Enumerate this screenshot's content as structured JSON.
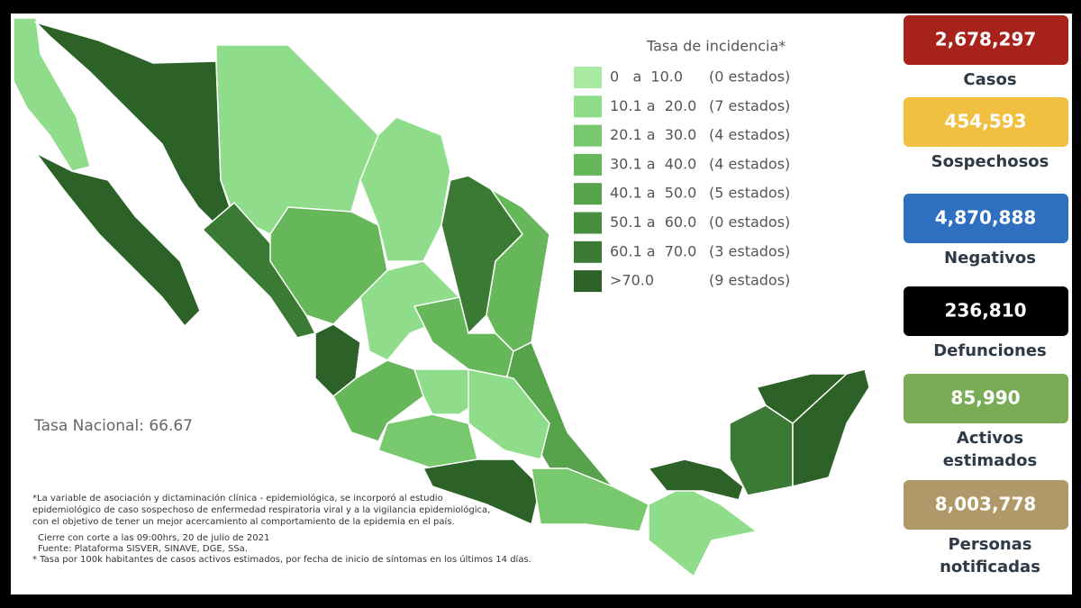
{
  "legend": {
    "title": "Tasa de incidencia*",
    "items": [
      {
        "range": "0   a  10.0",
        "count": "(0 estados)",
        "color": "#a9eaa2"
      },
      {
        "range": "10.1 a  20.0",
        "count": "(7 estados)",
        "color": "#8fdc8a"
      },
      {
        "range": "20.1 a  30.0",
        "count": "(4 estados)",
        "color": "#78c86d"
      },
      {
        "range": "30.1 a  40.0",
        "count": "(4 estados)",
        "color": "#66b65a"
      },
      {
        "range": "40.1 a  50.0",
        "count": "(5 estados)",
        "color": "#56a34c"
      },
      {
        "range": "50.1 a  60.0",
        "count": "(0 estados)",
        "color": "#478f3f"
      },
      {
        "range": "60.1 a  70.0",
        "count": "(3 estados)",
        "color": "#3b7a34"
      },
      {
        "range": ">70.0",
        "count": "(9 estados)",
        "color": "#2c6127"
      }
    ]
  },
  "national_rate": "Tasa Nacional: 66.67",
  "notes": [
    "*La variable de asociación y dictaminación clínica - epidemiológica, se incorporó al estudio",
    "epidemiológico de caso sospechoso de enfermedad respiratoria viral y a la vigilancia epidemiológica,",
    "con el objetivo de tener un mejor acercamiento al comportamiento de la epidemia en el país.",
    "Cierre con corte a las 09:00hrs, 20 de julio de 2021",
    "Fuente: Plataforma SISVER, SINAVE, DGE, SSa.",
    "* Tasa por 100k habitantes de casos activos estimados, por fecha de inicio de síntomas en los últimos 14 días."
  ],
  "stats": [
    {
      "value": "2,678,297",
      "label": [
        "Casos"
      ],
      "color": "#a8221c"
    },
    {
      "value": "454,593",
      "label": [
        "Sospechosos"
      ],
      "color": "#f2c041"
    },
    {
      "value": "4,870,888",
      "label": [
        "Negativos"
      ],
      "color": "#2f6fc0"
    },
    {
      "value": "236,810",
      "label": [
        "Defunciones"
      ],
      "color": "#000000"
    },
    {
      "value": "85,990",
      "label": [
        "Activos",
        "estimados"
      ],
      "color": "#7aab55"
    },
    {
      "value": "8,003,778",
      "label": [
        "Personas",
        "notificadas"
      ],
      "color": "#b09968"
    }
  ]
}
